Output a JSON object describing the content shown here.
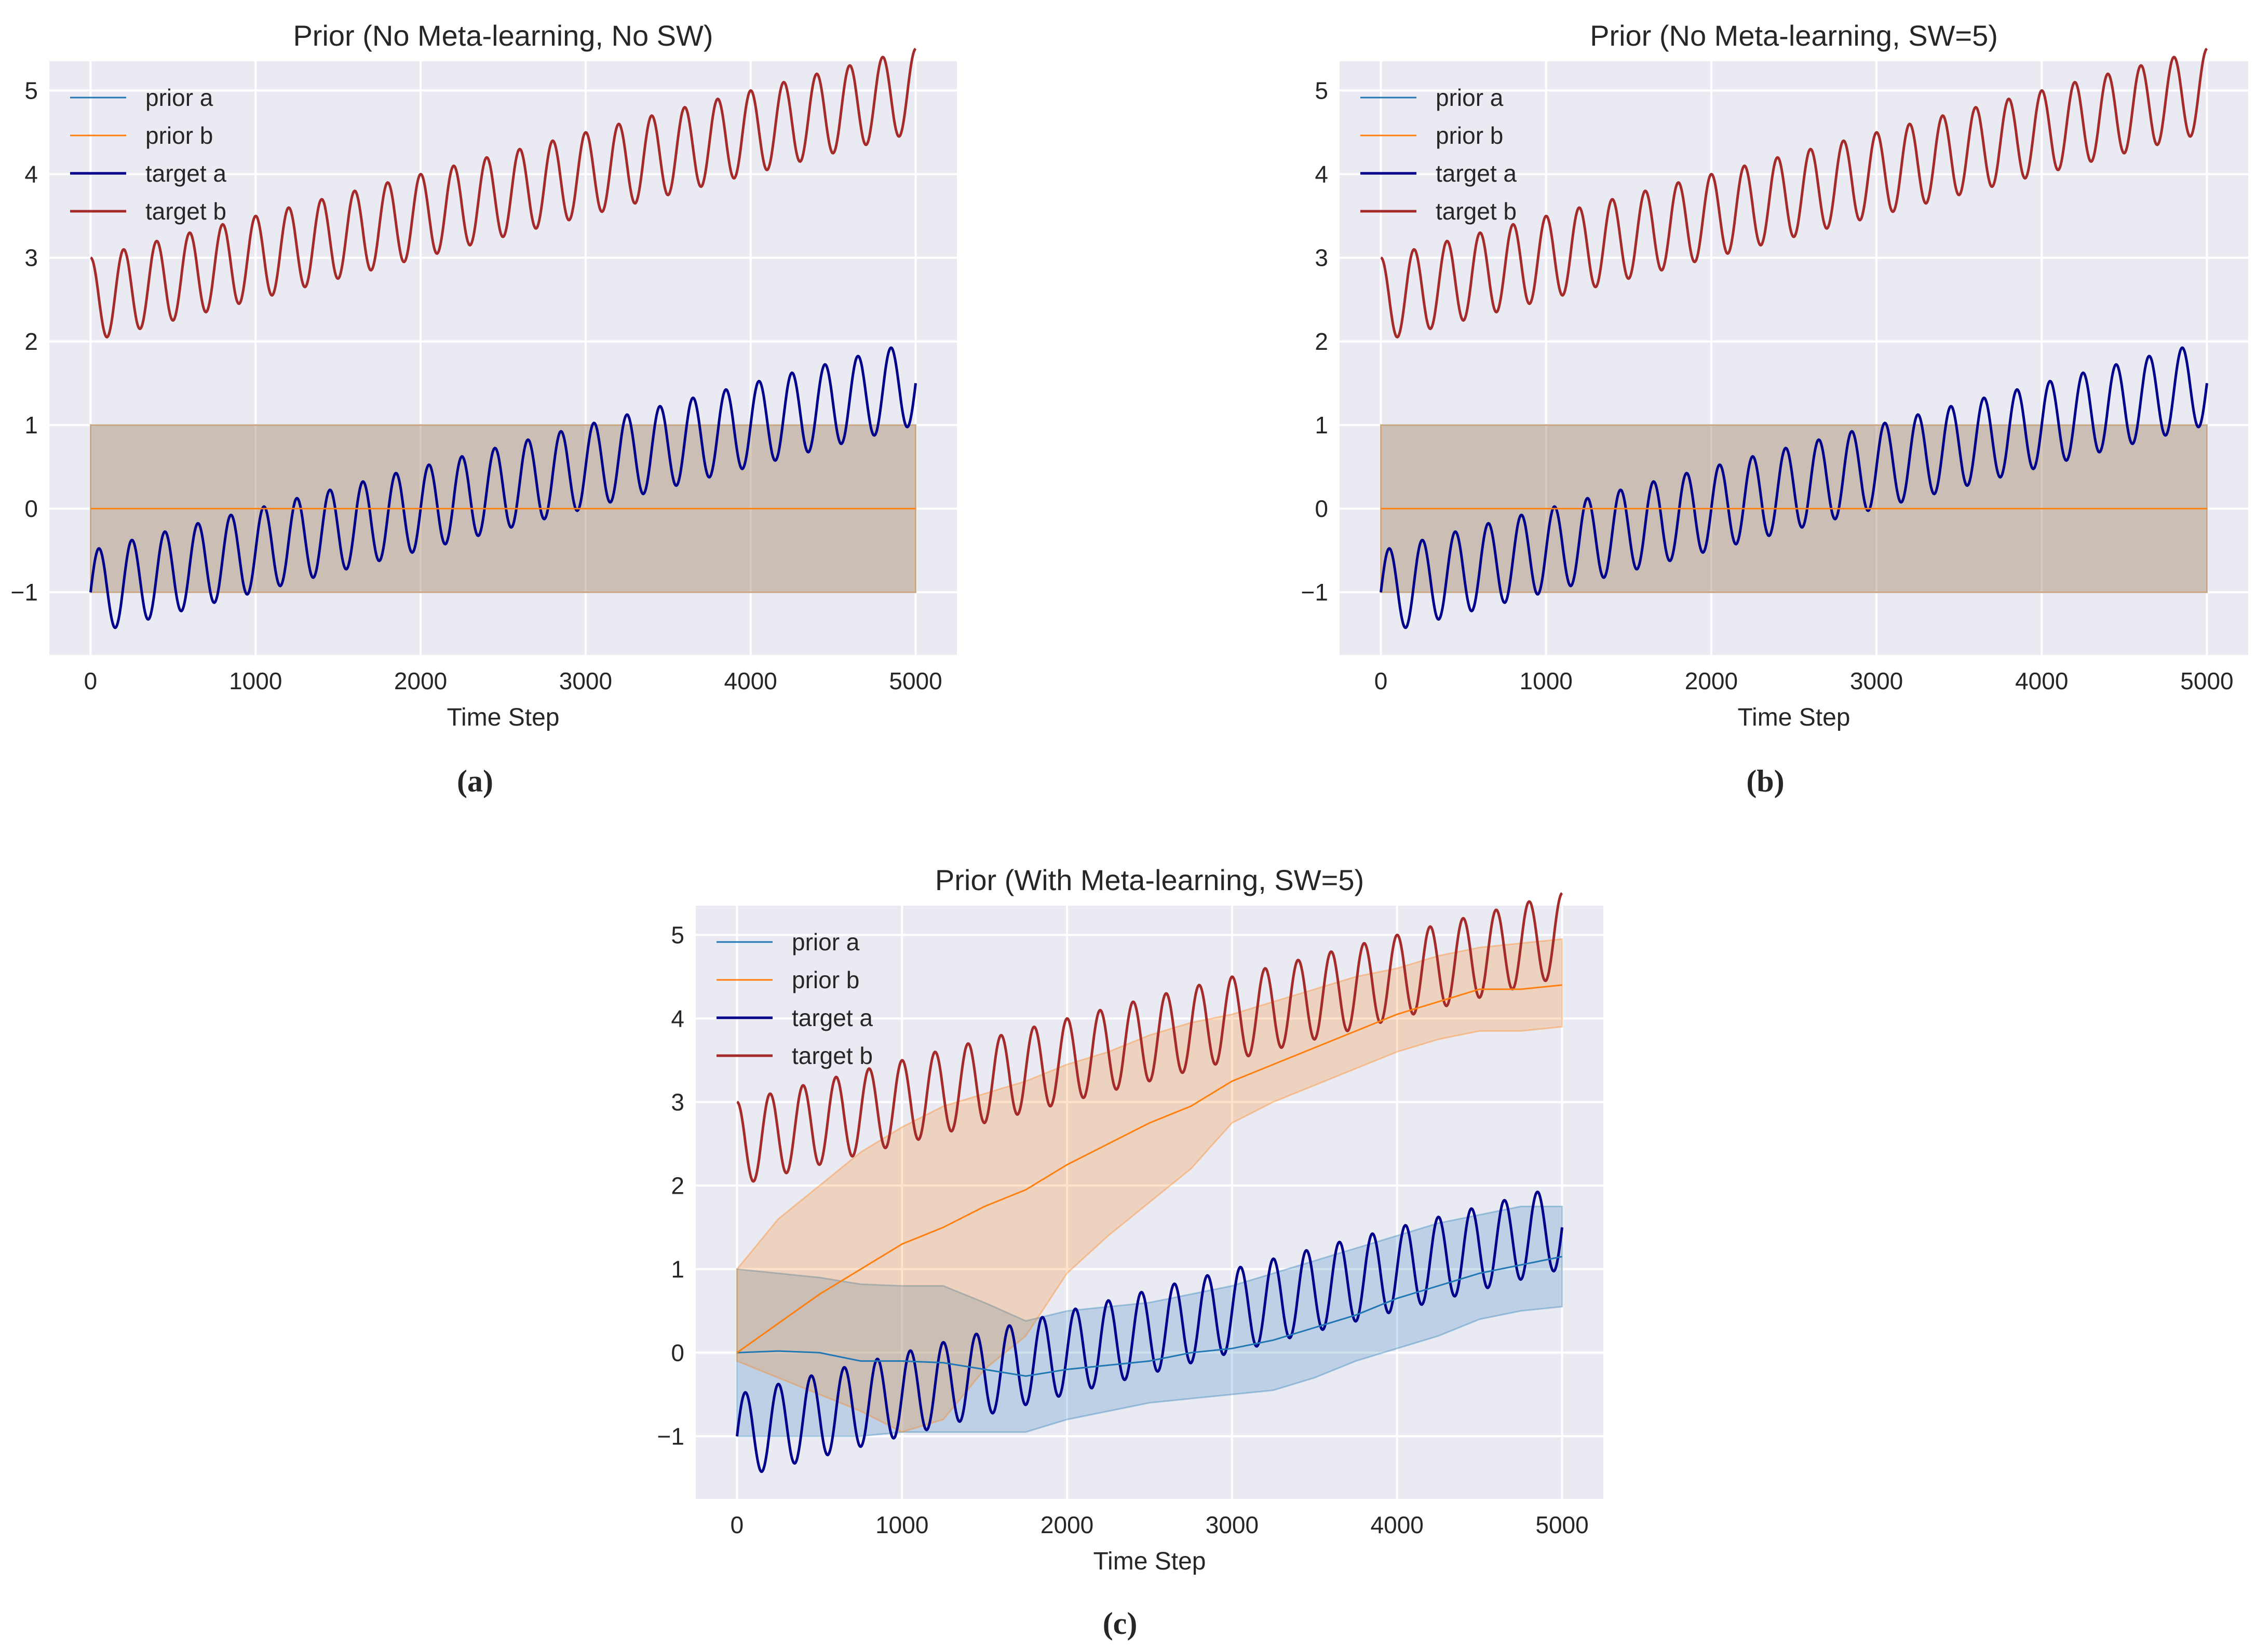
{
  "figure": {
    "panel_labels": [
      "(a)",
      "(b)",
      "(c)"
    ],
    "colors": {
      "background": "#EAEAF2",
      "grid": "#FFFFFF",
      "prior_a": "#1F77B4",
      "prior_b": "#FF7F0E",
      "target_a": "#00008B",
      "target_b": "#A52A2A"
    }
  },
  "chart_data": [
    {
      "type": "line",
      "title": "Prior (No Meta-learning, No SW)",
      "xlabel": "Time Step",
      "ylabel": "",
      "xlim": [
        -250,
        5250
      ],
      "ylim": [
        -1.75,
        5.35
      ],
      "xticks": [
        0,
        1000,
        2000,
        3000,
        4000,
        5000
      ],
      "yticks": [
        -1,
        0,
        1,
        2,
        3,
        4,
        5
      ],
      "grid": true,
      "legend": {
        "placement": "top-left",
        "entries": [
          "prior a",
          "prior b",
          "target a",
          "target b"
        ]
      },
      "series": [
        {
          "name": "prior a",
          "kind": "prior",
          "x": [
            0,
            5000
          ],
          "mean": [
            0,
            0
          ],
          "lower": [
            -1,
            -1
          ],
          "upper": [
            1,
            1
          ]
        },
        {
          "name": "prior b",
          "kind": "prior",
          "x": [
            0,
            5000
          ],
          "mean": [
            0,
            0
          ],
          "lower": [
            -1,
            -1
          ],
          "upper": [
            1,
            1
          ]
        },
        {
          "name": "target a",
          "kind": "target",
          "function": "-1 + 0.5*x/1000 + 0.5*sin(2*pi*x/200)",
          "x_range": [
            0,
            5000
          ]
        },
        {
          "name": "target b",
          "kind": "target",
          "function": "2.5 + 0.5*x/1000 + 0.5*cos(2*pi*x/200)",
          "x_range": [
            0,
            5000
          ]
        }
      ]
    },
    {
      "type": "line",
      "title": "Prior (No Meta-learning, SW=5)",
      "xlabel": "Time Step",
      "ylabel": "",
      "xlim": [
        -250,
        5250
      ],
      "ylim": [
        -1.75,
        5.35
      ],
      "xticks": [
        0,
        1000,
        2000,
        3000,
        4000,
        5000
      ],
      "yticks": [
        -1,
        0,
        1,
        2,
        3,
        4,
        5
      ],
      "grid": true,
      "legend": {
        "placement": "top-left",
        "entries": [
          "prior a",
          "prior b",
          "target a",
          "target b"
        ]
      },
      "series": [
        {
          "name": "prior a",
          "kind": "prior",
          "x": [
            0,
            5000
          ],
          "mean": [
            0,
            0
          ],
          "lower": [
            -1,
            -1
          ],
          "upper": [
            1,
            1
          ]
        },
        {
          "name": "prior b",
          "kind": "prior",
          "x": [
            0,
            5000
          ],
          "mean": [
            0,
            0
          ],
          "lower": [
            -1,
            -1
          ],
          "upper": [
            1,
            1
          ]
        },
        {
          "name": "target a",
          "kind": "target",
          "function": "-1 + 0.5*x/1000 + 0.5*sin(2*pi*x/200)",
          "x_range": [
            0,
            5000
          ]
        },
        {
          "name": "target b",
          "kind": "target",
          "function": "2.5 + 0.5*x/1000 + 0.5*cos(2*pi*x/200)",
          "x_range": [
            0,
            5000
          ]
        }
      ]
    },
    {
      "type": "line",
      "title": "Prior (With Meta-learning, SW=5)",
      "xlabel": "Time Step",
      "ylabel": "",
      "xlim": [
        -250,
        5250
      ],
      "ylim": [
        -1.75,
        5.35
      ],
      "xticks": [
        0,
        1000,
        2000,
        3000,
        4000,
        5000
      ],
      "yticks": [
        -1,
        0,
        1,
        2,
        3,
        4,
        5
      ],
      "grid": true,
      "legend": {
        "placement": "top-left",
        "entries": [
          "prior a",
          "prior b",
          "target a",
          "target b"
        ]
      },
      "series": [
        {
          "name": "prior a",
          "kind": "prior",
          "x": [
            0,
            250,
            500,
            750,
            1000,
            1250,
            1500,
            1750,
            2000,
            2250,
            2500,
            2750,
            3000,
            3250,
            3500,
            3750,
            4000,
            4250,
            4500,
            4750,
            5000
          ],
          "mean": [
            0,
            0.02,
            0,
            -0.1,
            -0.1,
            -0.12,
            -0.2,
            -0.28,
            -0.2,
            -0.15,
            -0.1,
            0,
            0.05,
            0.15,
            0.3,
            0.45,
            0.65,
            0.8,
            0.95,
            1.05,
            1.15
          ],
          "lower": [
            -1,
            -1,
            -1,
            -1,
            -0.95,
            -0.95,
            -0.95,
            -0.95,
            -0.8,
            -0.7,
            -0.6,
            -0.55,
            -0.5,
            -0.45,
            -0.3,
            -0.1,
            0.05,
            0.2,
            0.4,
            0.5,
            0.55
          ],
          "upper": [
            1,
            0.95,
            0.9,
            0.82,
            0.8,
            0.8,
            0.6,
            0.38,
            0.5,
            0.55,
            0.6,
            0.7,
            0.8,
            0.95,
            1.1,
            1.25,
            1.4,
            1.55,
            1.65,
            1.75,
            1.75
          ]
        },
        {
          "name": "prior b",
          "kind": "prior",
          "x": [
            0,
            250,
            500,
            750,
            1000,
            1250,
            1500,
            1750,
            2000,
            2250,
            2500,
            2750,
            3000,
            3250,
            3500,
            3750,
            4000,
            4250,
            4500,
            4750,
            5000
          ],
          "mean": [
            0,
            0.35,
            0.7,
            1.0,
            1.3,
            1.5,
            1.75,
            1.95,
            2.25,
            2.5,
            2.75,
            2.95,
            3.25,
            3.45,
            3.65,
            3.85,
            4.05,
            4.2,
            4.35,
            4.35,
            4.4
          ],
          "lower": [
            -0.1,
            -0.3,
            -0.5,
            -0.7,
            -0.95,
            -0.8,
            -0.2,
            0.2,
            0.95,
            1.4,
            1.8,
            2.2,
            2.75,
            3.0,
            3.2,
            3.4,
            3.6,
            3.75,
            3.85,
            3.85,
            3.9
          ],
          "upper": [
            1.0,
            1.6,
            2.0,
            2.4,
            2.7,
            2.95,
            3.1,
            3.25,
            3.45,
            3.6,
            3.8,
            3.95,
            4.05,
            4.2,
            4.35,
            4.5,
            4.6,
            4.75,
            4.85,
            4.9,
            4.95
          ]
        },
        {
          "name": "target a",
          "kind": "target",
          "function": "-1 + 0.5*x/1000 + 0.5*sin(2*pi*x/200)",
          "x_range": [
            0,
            5000
          ]
        },
        {
          "name": "target b",
          "kind": "target",
          "function": "2.5 + 0.5*x/1000 + 0.5*cos(2*pi*x/200)",
          "x_range": [
            0,
            5000
          ]
        }
      ]
    }
  ]
}
